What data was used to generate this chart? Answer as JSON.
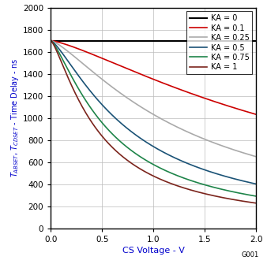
{
  "xlabel": "CS Voltage - V",
  "xlim": [
    0,
    2
  ],
  "ylim": [
    0,
    2000
  ],
  "xticks": [
    0,
    0.5,
    1.0,
    1.5,
    2.0
  ],
  "yticks": [
    0,
    200,
    400,
    600,
    800,
    1000,
    1200,
    1400,
    1600,
    1800,
    2000
  ],
  "legend_labels": [
    "KA = 0",
    "KA = 0.1",
    "KA = 0.25",
    "KA = 0.5",
    "KA = 0.75",
    "KA = 1"
  ],
  "ka_values": [
    0,
    0.1,
    0.25,
    0.5,
    0.75,
    1.0
  ],
  "colors": [
    "#000000",
    "#cc0000",
    "#aaaaaa",
    "#1a5276",
    "#1e8449",
    "#7b241c"
  ],
  "T0": 1700,
  "note": "G001",
  "background_color": "#ffffff",
  "figsize": [
    3.38,
    3.35
  ],
  "dpi": 100
}
